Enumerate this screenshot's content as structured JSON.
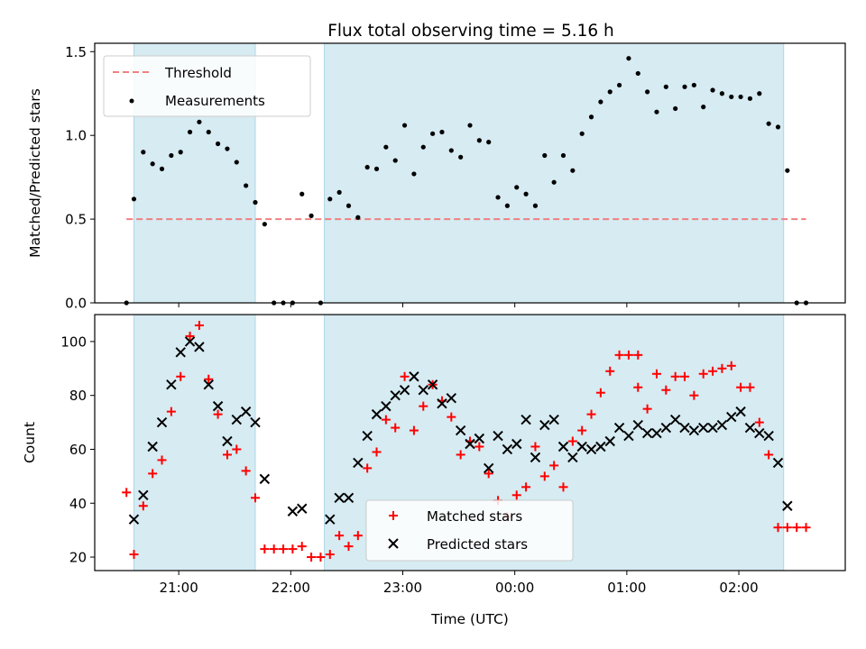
{
  "chart_data": [
    {
      "type": "scatter",
      "title": "Flux total observing time = 5.16 h",
      "xlabel": "",
      "ylabel": "Matched/Predicted stars",
      "ylim": [
        0,
        1.55
      ],
      "yticks": [
        "0.0",
        "0.5",
        "1.0",
        "1.5"
      ],
      "x_axis": "time (UTC), hours since 00:00 of first night, continuing past midnight",
      "legend": {
        "placement": "upper-left",
        "entries": [
          "Threshold",
          "Measurements"
        ]
      },
      "shaded_intervals": [
        [
          "20:36",
          "21:41"
        ],
        [
          "22:18",
          "02:24"
        ]
      ],
      "series": [
        {
          "name": "Threshold",
          "kind": "dashed-line",
          "color": "#f08080",
          "x": [
            "20:32",
            "02:36"
          ],
          "y": [
            0.5,
            0.5
          ]
        },
        {
          "name": "Measurements",
          "kind": "points",
          "color": "#000000",
          "x": [
            "20:32",
            "20:36",
            "20:41",
            "20:46",
            "20:51",
            "20:56",
            "21:01",
            "21:06",
            "21:11",
            "21:16",
            "21:21",
            "21:26",
            "21:31",
            "21:36",
            "21:41",
            "21:46",
            "21:51",
            "21:56",
            "22:01",
            "22:06",
            "22:11",
            "22:16",
            "22:21",
            "22:26",
            "22:31",
            "22:36",
            "22:41",
            "22:46",
            "22:51",
            "22:56",
            "23:01",
            "23:06",
            "23:11",
            "23:16",
            "23:21",
            "23:26",
            "23:31",
            "23:36",
            "23:41",
            "23:46",
            "23:51",
            "23:56",
            "00:01",
            "00:06",
            "00:11",
            "00:16",
            "00:21",
            "00:26",
            "00:31",
            "00:36",
            "00:41",
            "00:46",
            "00:51",
            "00:56",
            "01:01",
            "01:06",
            "01:11",
            "01:16",
            "01:21",
            "01:26",
            "01:31",
            "01:36",
            "01:41",
            "01:46",
            "01:51",
            "01:56",
            "02:01",
            "02:06",
            "02:11",
            "02:16",
            "02:21",
            "02:26",
            "02:31",
            "02:36"
          ],
          "y": [
            0.0,
            0.62,
            0.9,
            0.83,
            0.8,
            0.88,
            0.9,
            1.02,
            1.08,
            1.02,
            0.95,
            0.92,
            0.84,
            0.7,
            0.6,
            0.47,
            0.0,
            0.0,
            0.0,
            0.65,
            0.52,
            0.0,
            0.62,
            0.66,
            0.58,
            0.51,
            0.81,
            0.8,
            0.93,
            0.85,
            1.06,
            0.77,
            0.93,
            1.01,
            1.02,
            0.91,
            0.87,
            1.06,
            0.97,
            0.96,
            0.63,
            0.58,
            0.69,
            0.65,
            0.58,
            0.88,
            0.72,
            0.88,
            0.79,
            1.01,
            1.11,
            1.2,
            1.26,
            1.3,
            1.46,
            1.37,
            1.26,
            1.14,
            1.29,
            1.16,
            1.29,
            1.3,
            1.17,
            1.27,
            1.25,
            1.23,
            1.23,
            1.22,
            1.25,
            1.07,
            1.05,
            0.79,
            0.0,
            0.0
          ]
        }
      ]
    },
    {
      "type": "scatter",
      "title": "",
      "xlabel": "Time (UTC)",
      "ylabel": "Count",
      "ylim": [
        15,
        110
      ],
      "yticks": [
        "20",
        "40",
        "60",
        "80",
        "100"
      ],
      "xticks": [
        "21:00",
        "22:00",
        "23:00",
        "00:00",
        "01:00",
        "02:00"
      ],
      "legend": {
        "placement": "lower-center",
        "entries": [
          "Matched stars",
          "Predicted stars"
        ]
      },
      "shaded_intervals": [
        [
          "20:36",
          "21:41"
        ],
        [
          "22:18",
          "02:24"
        ]
      ],
      "series": [
        {
          "name": "Matched stars",
          "marker": "plus",
          "color": "#ff0000",
          "x": [
            "20:32",
            "20:36",
            "20:41",
            "20:46",
            "20:51",
            "20:56",
            "21:01",
            "21:06",
            "21:11",
            "21:16",
            "21:21",
            "21:26",
            "21:31",
            "21:36",
            "21:41",
            "21:46",
            "21:51",
            "21:56",
            "22:01",
            "22:06",
            "22:11",
            "22:16",
            "22:21",
            "22:26",
            "22:31",
            "22:36",
            "22:41",
            "22:46",
            "22:51",
            "22:56",
            "23:01",
            "23:06",
            "23:11",
            "23:16",
            "23:21",
            "23:26",
            "23:31",
            "23:36",
            "23:41",
            "23:46",
            "23:51",
            "23:56",
            "00:01",
            "00:06",
            "00:11",
            "00:16",
            "00:21",
            "00:26",
            "00:31",
            "00:36",
            "00:41",
            "00:46",
            "00:51",
            "00:56",
            "01:01",
            "01:06",
            "01:11",
            "01:16",
            "01:21",
            "01:26",
            "01:31",
            "01:36",
            "01:41",
            "01:46",
            "01:51",
            "01:56",
            "02:01",
            "02:06",
            "02:11",
            "02:16",
            "02:21",
            "02:26",
            "02:31",
            "02:36"
          ],
          "y": [
            44,
            21,
            39,
            51,
            56,
            74,
            87,
            102,
            106,
            86,
            73,
            58,
            60,
            52,
            42,
            23,
            23,
            23,
            23,
            24,
            20,
            20,
            21,
            28,
            24,
            28,
            53,
            59,
            71,
            68,
            87,
            67,
            76,
            84,
            78,
            72,
            58,
            63,
            61,
            51,
            41,
            35,
            43,
            46,
            61,
            50,
            54,
            46,
            63,
            67,
            73,
            81,
            89,
            95,
            95,
            83,
            75,
            88,
            82,
            87,
            87,
            80,
            88,
            89,
            90,
            91,
            83,
            83,
            70,
            58,
            31,
            31,
            31,
            31
          ],
          "extra_point": {
            "x": "01:06",
            "y": 95
          }
        },
        {
          "name": "Predicted stars",
          "marker": "x",
          "color": "#000000",
          "x": [
            "20:36",
            "20:41",
            "20:46",
            "20:51",
            "20:56",
            "21:01",
            "21:06",
            "21:11",
            "21:16",
            "21:21",
            "21:26",
            "21:31",
            "21:36",
            "21:41",
            "21:46",
            "22:01",
            "22:06",
            "22:21",
            "22:26",
            "22:31",
            "22:36",
            "22:41",
            "22:46",
            "22:51",
            "22:56",
            "23:01",
            "23:06",
            "23:11",
            "23:16",
            "23:21",
            "23:26",
            "23:31",
            "23:36",
            "23:41",
            "23:46",
            "23:51",
            "23:56",
            "00:01",
            "00:06",
            "00:11",
            "00:16",
            "00:21",
            "00:26",
            "00:31",
            "00:36",
            "00:41",
            "00:46",
            "00:51",
            "00:56",
            "01:01",
            "01:06",
            "01:11",
            "01:16",
            "01:21",
            "01:26",
            "01:31",
            "01:36",
            "01:41",
            "01:46",
            "01:51",
            "01:56",
            "02:01",
            "02:06",
            "02:11",
            "02:16",
            "02:21",
            "02:26"
          ],
          "y": [
            34,
            43,
            61,
            70,
            84,
            96,
            100,
            98,
            84,
            76,
            63,
            71,
            74,
            70,
            49,
            37,
            38,
            34,
            42,
            42,
            55,
            65,
            73,
            76,
            80,
            82,
            87,
            82,
            84,
            77,
            79,
            67,
            62,
            64,
            53,
            65,
            60,
            62,
            71,
            57,
            69,
            71,
            61,
            57,
            61,
            60,
            61,
            63,
            68,
            65,
            69,
            66,
            66,
            68,
            71,
            68,
            67,
            68,
            68,
            69,
            72,
            74,
            68,
            66,
            65,
            55,
            39
          ]
        }
      ]
    }
  ],
  "colors": {
    "shade": "#add8e6",
    "threshold": "#f08080",
    "matched": "#ff0000",
    "predicted": "#000000",
    "measurements": "#000000"
  }
}
